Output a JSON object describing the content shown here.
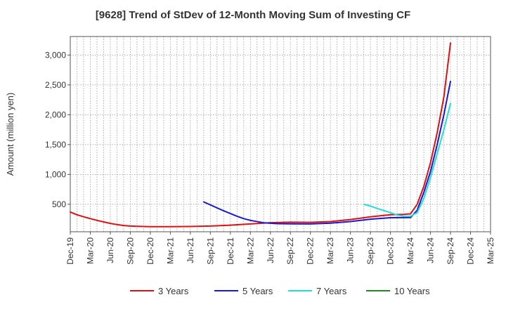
{
  "chart_data": {
    "type": "line",
    "title": "[9628]  Trend of StDev of 12-Month Moving Sum of Investing CF",
    "ylabel": "Amount (million yen)",
    "xlabel": "",
    "ylim": [
      40,
      3310
    ],
    "yticks": [
      500,
      1000,
      1500,
      2000,
      2500,
      3000
    ],
    "ytick_labels": [
      "500",
      "1,000",
      "1,500",
      "2,000",
      "2,500",
      "3,000"
    ],
    "xrange": [
      "2019-12",
      "2025-03"
    ],
    "xticks": [
      "2019-12",
      "2020-03",
      "2020-06",
      "2020-09",
      "2020-12",
      "2021-03",
      "2021-06",
      "2021-09",
      "2021-12",
      "2022-03",
      "2022-06",
      "2022-09",
      "2022-12",
      "2023-03",
      "2023-06",
      "2023-09",
      "2023-12",
      "2024-03",
      "2024-06",
      "2024-09",
      "2024-12",
      "2025-03"
    ],
    "xtick_labels": [
      "Dec-19",
      "Mar-20",
      "Jun-20",
      "Sep-20",
      "Dec-20",
      "Mar-21",
      "Jun-21",
      "Sep-21",
      "Dec-21",
      "Mar-22",
      "Jun-22",
      "Sep-22",
      "Dec-22",
      "Mar-23",
      "Jun-23",
      "Sep-23",
      "Dec-23",
      "Mar-24",
      "Jun-24",
      "Sep-24",
      "Dec-24",
      "Mar-25"
    ],
    "grid": true,
    "legend_position": "bottom",
    "series": [
      {
        "name": "3 Years",
        "color": "#dd1111",
        "points": [
          [
            "2019-12",
            370
          ],
          [
            "2020-01",
            325
          ],
          [
            "2020-02",
            290
          ],
          [
            "2020-03",
            260
          ],
          [
            "2020-04",
            230
          ],
          [
            "2020-05",
            205
          ],
          [
            "2020-06",
            180
          ],
          [
            "2020-07",
            160
          ],
          [
            "2020-08",
            145
          ],
          [
            "2020-09",
            135
          ],
          [
            "2020-10",
            130
          ],
          [
            "2020-11",
            128
          ],
          [
            "2020-12",
            126
          ],
          [
            "2021-03",
            126
          ],
          [
            "2021-06",
            128
          ],
          [
            "2021-09",
            135
          ],
          [
            "2021-12",
            150
          ],
          [
            "2022-03",
            170
          ],
          [
            "2022-06",
            192
          ],
          [
            "2022-09",
            200
          ],
          [
            "2022-12",
            198
          ],
          [
            "2023-03",
            210
          ],
          [
            "2023-06",
            245
          ],
          [
            "2023-09",
            290
          ],
          [
            "2023-12",
            325
          ],
          [
            "2024-02",
            330
          ],
          [
            "2024-03",
            340
          ],
          [
            "2024-04",
            500
          ],
          [
            "2024-05",
            800
          ],
          [
            "2024-06",
            1200
          ],
          [
            "2024-07",
            1700
          ],
          [
            "2024-08",
            2300
          ],
          [
            "2024-09",
            3200
          ]
        ]
      },
      {
        "name": "5 Years",
        "color": "#1a1acc",
        "points": [
          [
            "2021-08",
            540
          ],
          [
            "2021-09",
            490
          ],
          [
            "2021-10",
            440
          ],
          [
            "2021-11",
            390
          ],
          [
            "2021-12",
            345
          ],
          [
            "2022-01",
            300
          ],
          [
            "2022-02",
            260
          ],
          [
            "2022-03",
            230
          ],
          [
            "2022-05",
            190
          ],
          [
            "2022-07",
            175
          ],
          [
            "2022-09",
            172
          ],
          [
            "2022-12",
            170
          ],
          [
            "2023-03",
            185
          ],
          [
            "2023-06",
            210
          ],
          [
            "2023-09",
            250
          ],
          [
            "2023-12",
            275
          ],
          [
            "2024-03",
            278
          ],
          [
            "2024-04",
            400
          ],
          [
            "2024-05",
            700
          ],
          [
            "2024-06",
            1050
          ],
          [
            "2024-07",
            1500
          ],
          [
            "2024-08",
            2000
          ],
          [
            "2024-09",
            2560
          ]
        ]
      },
      {
        "name": "7 Years",
        "color": "#22dddd",
        "points": [
          [
            "2023-08",
            500
          ],
          [
            "2023-09",
            470
          ],
          [
            "2023-10",
            430
          ],
          [
            "2023-11",
            395
          ],
          [
            "2023-12",
            360
          ],
          [
            "2024-01",
            320
          ],
          [
            "2024-02",
            300
          ],
          [
            "2024-03",
            300
          ],
          [
            "2024-04",
            360
          ],
          [
            "2024-05",
            600
          ],
          [
            "2024-06",
            950
          ],
          [
            "2024-07",
            1350
          ],
          [
            "2024-08",
            1750
          ],
          [
            "2024-09",
            2190
          ]
        ]
      },
      {
        "name": "10 Years",
        "color": "#228822",
        "points": []
      }
    ]
  }
}
